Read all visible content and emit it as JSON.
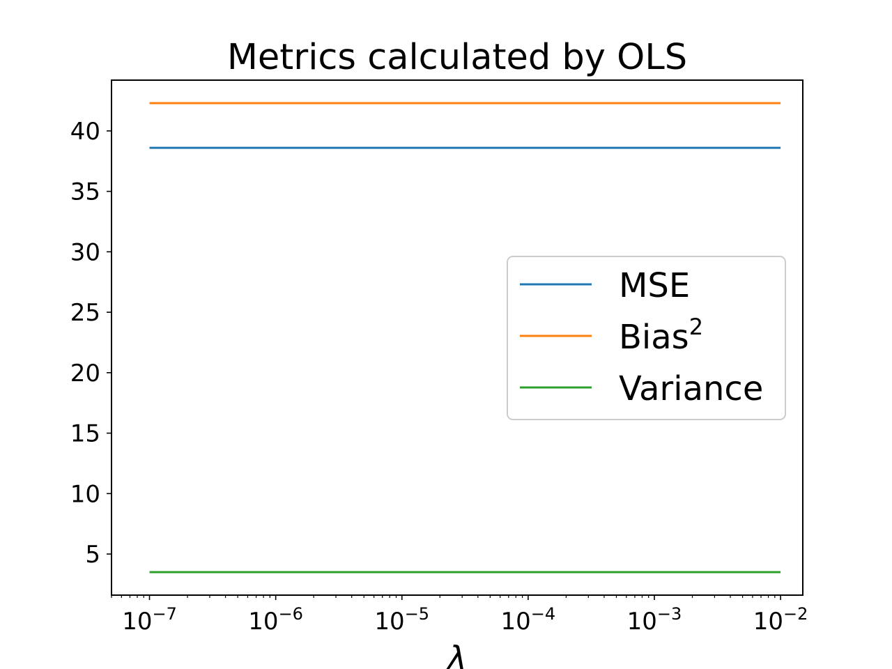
{
  "chart_data": {
    "type": "line",
    "title": "Metrics calculated by OLS",
    "xlabel": "λ",
    "ylabel": "",
    "xscale": "log",
    "xlim": [
      5e-08,
      0.015
    ],
    "ylim": [
      1.6,
      44.2
    ],
    "x": [
      1e-07,
      1e-06,
      1e-05,
      0.0001,
      0.001,
      0.01
    ],
    "xticks": [
      {
        "value": 1e-07,
        "base": "10",
        "exp": "−7"
      },
      {
        "value": 1e-06,
        "base": "10",
        "exp": "−6"
      },
      {
        "value": 1e-05,
        "base": "10",
        "exp": "−5"
      },
      {
        "value": 0.0001,
        "base": "10",
        "exp": "−4"
      },
      {
        "value": 0.001,
        "base": "10",
        "exp": "−3"
      },
      {
        "value": 0.01,
        "base": "10",
        "exp": "−2"
      }
    ],
    "yticks": [
      {
        "value": 5,
        "label": "5"
      },
      {
        "value": 10,
        "label": "10"
      },
      {
        "value": 15,
        "label": "15"
      },
      {
        "value": 20,
        "label": "20"
      },
      {
        "value": 25,
        "label": "25"
      },
      {
        "value": 30,
        "label": "30"
      },
      {
        "value": 35,
        "label": "35"
      },
      {
        "value": 40,
        "label": "40"
      }
    ],
    "series": [
      {
        "name": "MSE",
        "sup": "",
        "color": "#1f77b4",
        "values": [
          38.6,
          38.6,
          38.6,
          38.6,
          38.6,
          38.6
        ]
      },
      {
        "name": "Bias",
        "sup": "2",
        "color": "#ff7f0e",
        "values": [
          42.3,
          42.3,
          42.3,
          42.3,
          42.3,
          42.3
        ]
      },
      {
        "name": "Variance",
        "sup": "",
        "color": "#2ca02c",
        "values": [
          3.5,
          3.5,
          3.5,
          3.5,
          3.5,
          3.5
        ]
      }
    ],
    "grid": false,
    "legend": "center-right"
  }
}
